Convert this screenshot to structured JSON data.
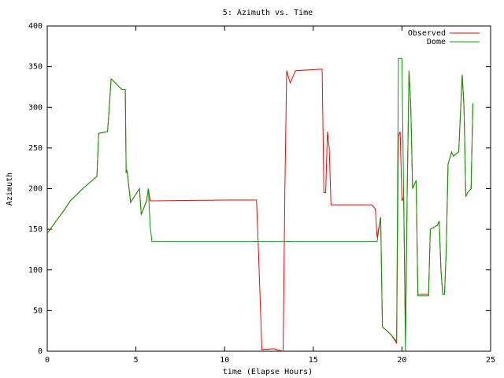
{
  "chart_data": {
    "type": "line",
    "title": "5: Azimuth vs. Time",
    "x_label": "time (Elapse Hours)",
    "y_label": "Azimuth",
    "x": [
      0,
      0.5,
      1,
      1.3,
      2,
      2.8,
      2.9,
      3.4,
      3.5,
      3.6,
      4.2,
      4.4,
      4.45,
      4.5,
      4.7,
      5.2,
      5.3,
      5.6,
      5.7,
      5.8,
      5.9,
      6,
      10,
      11.8,
      11.9,
      12.1,
      12.8,
      13.1,
      13.3,
      13.4,
      13.5,
      13.7,
      13.9,
      14,
      15.5,
      15.6,
      15.7,
      15.8,
      15.9,
      16,
      18.3,
      18.5,
      18.6,
      18.8,
      18.9,
      19.4,
      19.7,
      19.8,
      19.9,
      20,
      20.1,
      20.2,
      20.3,
      20.4,
      20.5,
      20.6,
      20.8,
      20.9,
      21.5,
      21.6,
      22,
      22.1,
      22.2,
      22.3,
      22.4,
      22.5,
      22.6,
      22.8,
      22.9,
      23.2,
      23.4,
      23.5,
      23.6,
      23.7,
      23.9,
      24
    ],
    "series": [
      {
        "name": "Observed",
        "color": "#ff0000",
        "values": [
          145,
          160,
          175,
          185,
          200,
          215,
          268,
          270,
          300,
          335,
          322,
          322,
          220,
          222,
          183,
          200,
          168,
          185,
          200,
          185,
          185,
          185,
          186,
          186,
          130,
          2,
          3,
          1,
          0,
          200,
          345,
          330,
          340,
          345,
          347,
          195,
          195,
          270,
          250,
          180,
          180,
          175,
          140,
          165,
          30,
          20,
          10,
          265,
          270,
          185,
          190,
          20,
          200,
          345,
          300,
          200,
          210,
          70,
          70,
          150,
          155,
          160,
          100,
          70,
          70,
          125,
          230,
          245,
          240,
          245,
          340,
          300,
          190,
          195,
          200,
          305
        ]
      },
      {
        "name": "Dome",
        "color": "#00a000",
        "values": [
          145,
          160,
          175,
          185,
          200,
          215,
          268,
          270,
          300,
          335,
          322,
          322,
          220,
          222,
          183,
          200,
          168,
          185,
          200,
          155,
          135,
          135,
          135,
          135,
          135,
          135,
          135,
          135,
          135,
          135,
          135,
          135,
          135,
          135,
          135,
          135,
          135,
          135,
          135,
          135,
          135,
          135,
          135,
          165,
          30,
          20,
          12,
          360,
          360,
          360,
          185,
          0,
          200,
          345,
          300,
          200,
          210,
          68,
          68,
          150,
          155,
          160,
          100,
          70,
          70,
          125,
          230,
          245,
          240,
          245,
          340,
          300,
          190,
          195,
          200,
          305
        ]
      }
    ],
    "xlim": [
      0,
      25
    ],
    "xticks": [
      0,
      5,
      10,
      15,
      20,
      25
    ],
    "ylim": [
      0,
      400
    ],
    "yticks": [
      0,
      50,
      100,
      150,
      200,
      250,
      300,
      350,
      400
    ],
    "legend": "top-right"
  }
}
